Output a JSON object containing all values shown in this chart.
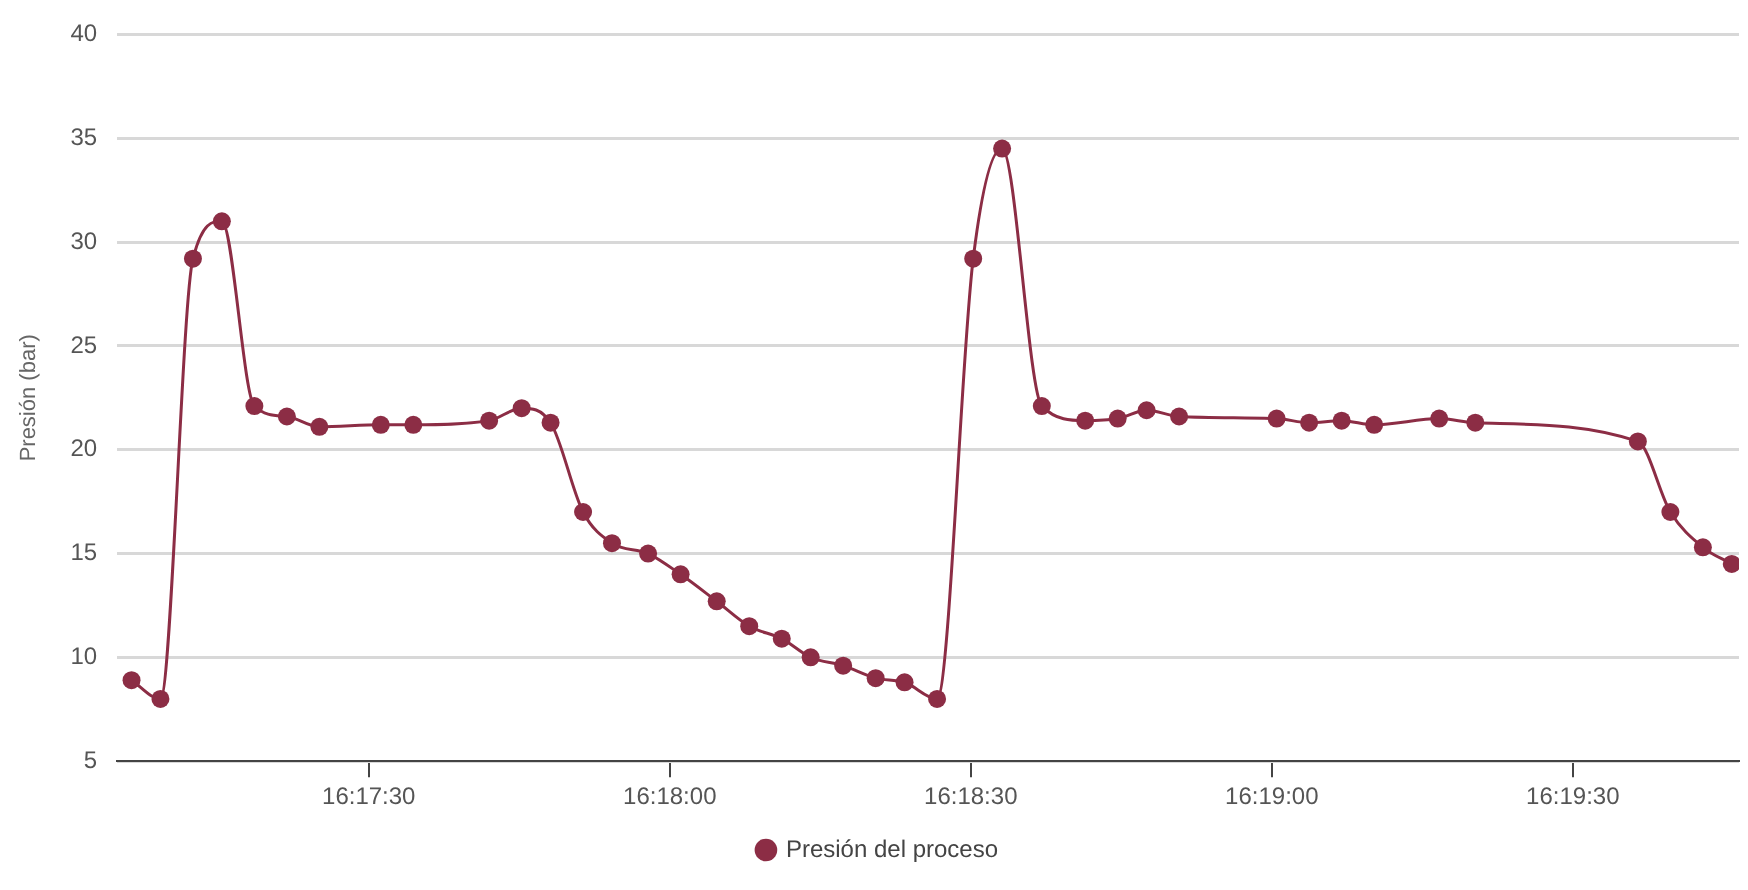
{
  "chart_data": {
    "type": "line",
    "ylabel": "Presión (bar)",
    "x": [
      16.2851,
      16.2859,
      16.2868,
      16.2876,
      16.2885,
      16.2894,
      16.2903,
      16.292,
      16.2929,
      16.295,
      16.2959,
      16.2967,
      16.2976,
      16.2984,
      16.2994,
      16.3003,
      16.3013,
      16.3022,
      16.3031,
      16.3039,
      16.3048,
      16.3057,
      16.3065,
      16.3074,
      16.3084,
      16.3092,
      16.3103,
      16.3115,
      16.3124,
      16.3132,
      16.3141,
      16.3168,
      16.3177,
      16.3186,
      16.3195,
      16.3213,
      16.3223,
      16.3268,
      16.3277,
      16.3286,
      16.3294
    ],
    "series": [
      {
        "name": "Presión del proceso",
        "color": "#8c2d45",
        "values": [
          8.9,
          8.0,
          29.2,
          31.0,
          22.1,
          21.6,
          21.1,
          21.2,
          21.2,
          21.4,
          22.0,
          21.3,
          17.0,
          15.5,
          15.0,
          14.0,
          12.7,
          11.5,
          10.9,
          10.0,
          9.6,
          9.0,
          8.8,
          8.0,
          29.2,
          34.5,
          22.1,
          21.4,
          21.5,
          21.9,
          21.6,
          21.5,
          21.3,
          21.4,
          21.2,
          21.5,
          21.3,
          20.4,
          17.0,
          15.3,
          14.5
        ]
      }
    ],
    "xlim": [
      16.2847,
      16.3296
    ],
    "xticks": [
      {
        "value": 16.291667,
        "label": "16:17:30"
      },
      {
        "value": 16.3,
        "label": "16:18:00"
      },
      {
        "value": 16.308333,
        "label": "16:18:30"
      },
      {
        "value": 16.316667,
        "label": "16:19:00"
      },
      {
        "value": 16.325,
        "label": "16:19:30"
      }
    ],
    "ylim": [
      5,
      40
    ],
    "yticks": [
      5,
      10,
      15,
      20,
      25,
      30,
      35,
      40
    ],
    "grid": "y",
    "legend": "bottom",
    "marker": "circle",
    "line_style": "solid"
  }
}
